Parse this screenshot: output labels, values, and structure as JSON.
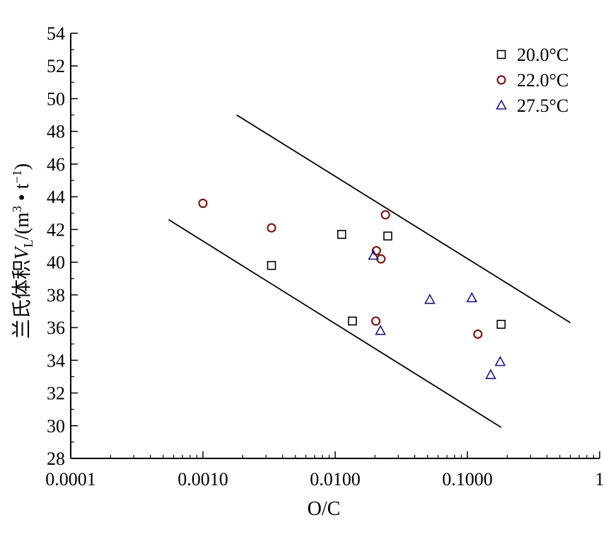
{
  "chart_data": {
    "type": "scatter",
    "xscale": "log",
    "xlim": [
      0.0001,
      1
    ],
    "ylim": [
      28,
      54
    ],
    "x_tick_values": [
      0.0001,
      0.001,
      0.01,
      0.1,
      1
    ],
    "x_tick_labels": [
      "0.0001",
      "0.0010",
      "0.0100",
      "0.1000",
      "1"
    ],
    "y_tick_values": [
      28,
      30,
      32,
      34,
      36,
      38,
      40,
      42,
      44,
      46,
      48,
      50,
      52,
      54
    ],
    "y_tick_labels": [
      "28",
      "30",
      "32",
      "34",
      "36",
      "38",
      "40",
      "42",
      "44",
      "46",
      "48",
      "50",
      "52",
      "54"
    ],
    "xlabel": "O/C",
    "ylabel": {
      "text_cn": "兰氏体积",
      "symbol": "V",
      "subscript": "L",
      "unit_open": "/(m",
      "unit_sup1": "3",
      "unit_mid": " • t",
      "unit_sup2": "−1",
      "unit_close": ")"
    },
    "legend": {
      "placement": "top-right",
      "entries": [
        "20.0°C",
        "22.0°C",
        "27.5°C"
      ]
    },
    "grid": false,
    "series": [
      {
        "name": "20.0°C",
        "marker": "square",
        "color": "#000000",
        "points": [
          [
            0.0033,
            39.8
          ],
          [
            0.0112,
            41.7
          ],
          [
            0.0135,
            36.4
          ],
          [
            0.025,
            41.6
          ],
          [
            0.18,
            36.2
          ]
        ]
      },
      {
        "name": "22.0°C",
        "marker": "circle",
        "color": "#7a1a1a",
        "points": [
          [
            0.001,
            43.6
          ],
          [
            0.0033,
            42.1
          ],
          [
            0.0205,
            40.7
          ],
          [
            0.0222,
            40.2
          ],
          [
            0.024,
            42.9
          ],
          [
            0.0203,
            36.4
          ],
          [
            0.12,
            35.6
          ]
        ]
      },
      {
        "name": "27.5°C",
        "marker": "triangle",
        "color": "#1a1a7a",
        "points": [
          [
            0.0195,
            40.4
          ],
          [
            0.022,
            35.8
          ],
          [
            0.052,
            37.7
          ],
          [
            0.108,
            37.8
          ],
          [
            0.15,
            33.1
          ],
          [
            0.177,
            33.9
          ]
        ]
      }
    ],
    "bound_lines": [
      {
        "points": [
          [
            0.00055,
            42.6
          ],
          [
            0.18,
            29.9
          ]
        ]
      },
      {
        "points": [
          [
            0.0018,
            49.0
          ],
          [
            0.6,
            36.3
          ]
        ]
      }
    ]
  }
}
